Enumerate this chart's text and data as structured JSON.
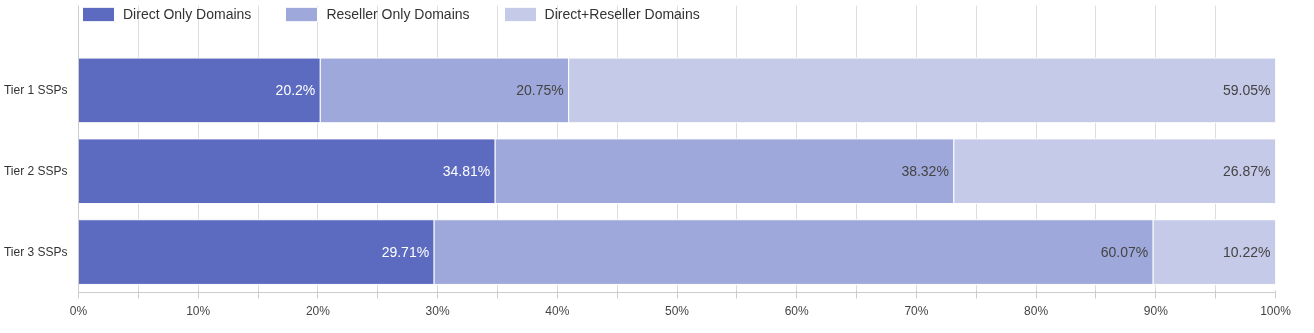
{
  "chart_data": {
    "type": "bar",
    "orientation": "horizontal",
    "stacked": true,
    "categories": [
      "Tier 1 SSPs",
      "Tier 2 SSPs",
      "Tier 3 SSPs"
    ],
    "series": [
      {
        "name": "Direct Only Domains",
        "color": "#5c6bc0",
        "values": [
          20.2,
          34.81,
          29.71
        ],
        "value_labels": [
          "20.2%",
          "34.81%",
          "29.71%"
        ]
      },
      {
        "name": "Reseller Only Domains",
        "color": "#9fa8da",
        "values": [
          20.75,
          38.32,
          60.07
        ],
        "value_labels": [
          "20.75%",
          "38.32%",
          "60.07%"
        ]
      },
      {
        "name": "Direct+Reseller Domains",
        "color": "#c5cae9",
        "values": [
          59.05,
          26.87,
          10.22
        ],
        "value_labels": [
          "59.05%",
          "26.87%",
          "10.22%"
        ]
      }
    ],
    "xlim": [
      0,
      100
    ],
    "xticks": [
      {
        "value": 0,
        "label": "0%"
      },
      {
        "value": 5,
        "label": null
      },
      {
        "value": 10,
        "label": "10%"
      },
      {
        "value": 15,
        "label": null
      },
      {
        "value": 20,
        "label": "20%"
      },
      {
        "value": 25,
        "label": null
      },
      {
        "value": 30,
        "label": "30%"
      },
      {
        "value": 35,
        "label": null
      },
      {
        "value": 40,
        "label": "40%"
      },
      {
        "value": 45,
        "label": null
      },
      {
        "value": 50,
        "label": "50%"
      },
      {
        "value": 55,
        "label": null
      },
      {
        "value": 60,
        "label": "60%"
      },
      {
        "value": 65,
        "label": null
      },
      {
        "value": 70,
        "label": "70%"
      },
      {
        "value": 75,
        "label": null
      },
      {
        "value": 80,
        "label": "80%"
      },
      {
        "value": 85,
        "label": null
      },
      {
        "value": 90,
        "label": "90%"
      },
      {
        "value": 95,
        "label": null
      },
      {
        "value": 100,
        "label": "100%"
      }
    ],
    "grid": "x",
    "legend": "top left"
  }
}
